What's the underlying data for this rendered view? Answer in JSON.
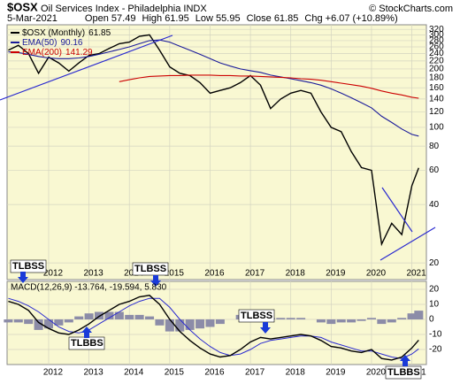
{
  "header": {
    "symbol": "$OSX",
    "name": "Oil Services Index - Philadelphia INDX",
    "copyright": "© StockCharts.com",
    "date": "5-Mar-2021",
    "open_label": "Open",
    "open": 57.49,
    "high_label": "High",
    "high": 61.95,
    "low_label": "Low",
    "low": 55.95,
    "close_label": "Close",
    "close": 61.85,
    "chg_label": "Chg",
    "chg": "+6.07 (+10.89%)"
  },
  "chart_data": [
    {
      "type": "line",
      "log_scale": true,
      "grid": true,
      "x": [
        2011,
        2011.25,
        2011.5,
        2011.75,
        2012,
        2012.25,
        2012.5,
        2012.75,
        2013,
        2013.25,
        2013.5,
        2013.75,
        2014,
        2014.25,
        2014.5,
        2014.75,
        2015,
        2015.25,
        2015.5,
        2015.75,
        2016,
        2016.25,
        2016.5,
        2016.75,
        2017,
        2017.25,
        2017.5,
        2017.75,
        2018,
        2018.25,
        2018.5,
        2018.75,
        2019,
        2019.25,
        2019.5,
        2019.75,
        2020,
        2020.25,
        2020.5,
        2020.75,
        2021,
        2021.17
      ],
      "xlim": [
        2010.97,
        2021.36
      ],
      "xticks": [
        2012,
        2013,
        2014,
        2015,
        2016,
        2017,
        2018,
        2019,
        2020,
        2021
      ],
      "ylim": [
        16.4,
        338
      ],
      "yticks": [
        20,
        40,
        60,
        80,
        100,
        120,
        140,
        160,
        180,
        200,
        220,
        240,
        260,
        280,
        300,
        320
      ],
      "series": [
        {
          "name": "$OSX (Monthly)",
          "color": "#000000",
          "values": [
            250,
            265,
            240,
            190,
            230,
            215,
            195,
            215,
            235,
            240,
            255,
            270,
            275,
            295,
            300,
            250,
            205,
            190,
            185,
            170,
            150,
            155,
            160,
            170,
            185,
            165,
            125,
            140,
            150,
            155,
            150,
            120,
            100,
            95,
            75,
            62,
            60,
            25,
            32,
            28,
            50,
            61.85
          ]
        },
        {
          "name": "EMA(50)",
          "color": "#1a1a9a",
          "values": [
            245,
            243,
            238,
            232,
            228,
            226,
            226,
            228,
            232,
            238,
            245,
            252,
            260,
            270,
            280,
            282,
            275,
            262,
            250,
            238,
            226,
            215,
            207,
            200,
            196,
            192,
            186,
            182,
            178,
            174,
            170,
            165,
            158,
            150,
            142,
            134,
            126,
            114,
            106,
            98,
            92,
            90.16
          ]
        },
        {
          "name": "EMA(200)",
          "color": "#cc0000",
          "values": [
            null,
            null,
            null,
            null,
            null,
            null,
            null,
            null,
            null,
            null,
            null,
            172,
            176,
            180,
            183,
            184,
            185,
            185,
            186,
            186,
            186,
            185,
            185,
            184,
            184,
            183,
            182,
            181,
            180,
            178,
            177,
            175,
            172,
            169,
            166,
            163,
            159,
            154,
            150,
            147,
            143,
            141.29
          ]
        }
      ],
      "annotations": [
        "TLBSS",
        "TLBSS"
      ]
    },
    {
      "type": "macd",
      "legend": "MACD(12,26,9) -13.764, -19.594, 5.830",
      "grid": true,
      "x": [
        2011,
        2011.25,
        2011.5,
        2011.75,
        2012,
        2012.25,
        2012.5,
        2012.75,
        2013,
        2013.25,
        2013.5,
        2013.75,
        2014,
        2014.25,
        2014.5,
        2014.75,
        2015,
        2015.25,
        2015.5,
        2015.75,
        2016,
        2016.25,
        2016.5,
        2016.75,
        2017,
        2017.25,
        2017.5,
        2017.75,
        2018,
        2018.25,
        2018.5,
        2018.75,
        2019,
        2019.25,
        2019.5,
        2019.75,
        2020,
        2020.25,
        2020.5,
        2020.75,
        2021,
        2021.17
      ],
      "xlim": [
        2010.97,
        2021.36
      ],
      "xticks": [
        2012,
        2013,
        2014,
        2015,
        2016,
        2017,
        2018,
        2019,
        2020,
        2021
      ],
      "ylim": [
        -30,
        25.3
      ],
      "yticks": [
        -20,
        -10,
        0,
        10,
        20
      ],
      "series": [
        {
          "name": "MACD",
          "color": "#000000",
          "values": [
            12,
            10,
            6,
            -2,
            -6,
            -9,
            -10,
            -7,
            -3,
            2,
            6,
            10,
            12,
            15,
            16,
            10,
            0,
            -8,
            -14,
            -19,
            -23,
            -25,
            -24,
            -20,
            -15,
            -12,
            -13,
            -12,
            -11,
            -10,
            -11,
            -14,
            -18,
            -19,
            -21,
            -22,
            -20,
            -26,
            -27,
            -25,
            -19,
            -13.764
          ]
        },
        {
          "name": "Signal",
          "color": "#2a2ad0",
          "values": [
            14,
            12,
            9,
            5,
            0,
            -5,
            -8,
            -9,
            -7,
            -3,
            1,
            5,
            9,
            12,
            14,
            14,
            8,
            0,
            -7,
            -13,
            -18,
            -22,
            -24,
            -23,
            -20,
            -16,
            -14,
            -13,
            -12,
            -11,
            -11,
            -12,
            -15,
            -17,
            -19,
            -21,
            -21,
            -23,
            -25,
            -26,
            -23,
            -19.594
          ]
        },
        {
          "name": "Histogram",
          "color": "#8c8ca8",
          "values": [
            -2,
            -2,
            -3,
            -7,
            -6,
            -4,
            -2,
            2,
            4,
            5,
            5,
            5,
            3,
            3,
            2,
            -4,
            -8,
            -8,
            -7,
            -6,
            -5,
            -3,
            0,
            3,
            5,
            4,
            1,
            1,
            1,
            1,
            0,
            -2,
            -3,
            -2,
            -2,
            -1,
            1,
            -3,
            -2,
            1,
            4,
            5.83
          ]
        }
      ],
      "annotations": [
        "TLBBS",
        "TLBSS",
        "TLBBS"
      ]
    }
  ]
}
